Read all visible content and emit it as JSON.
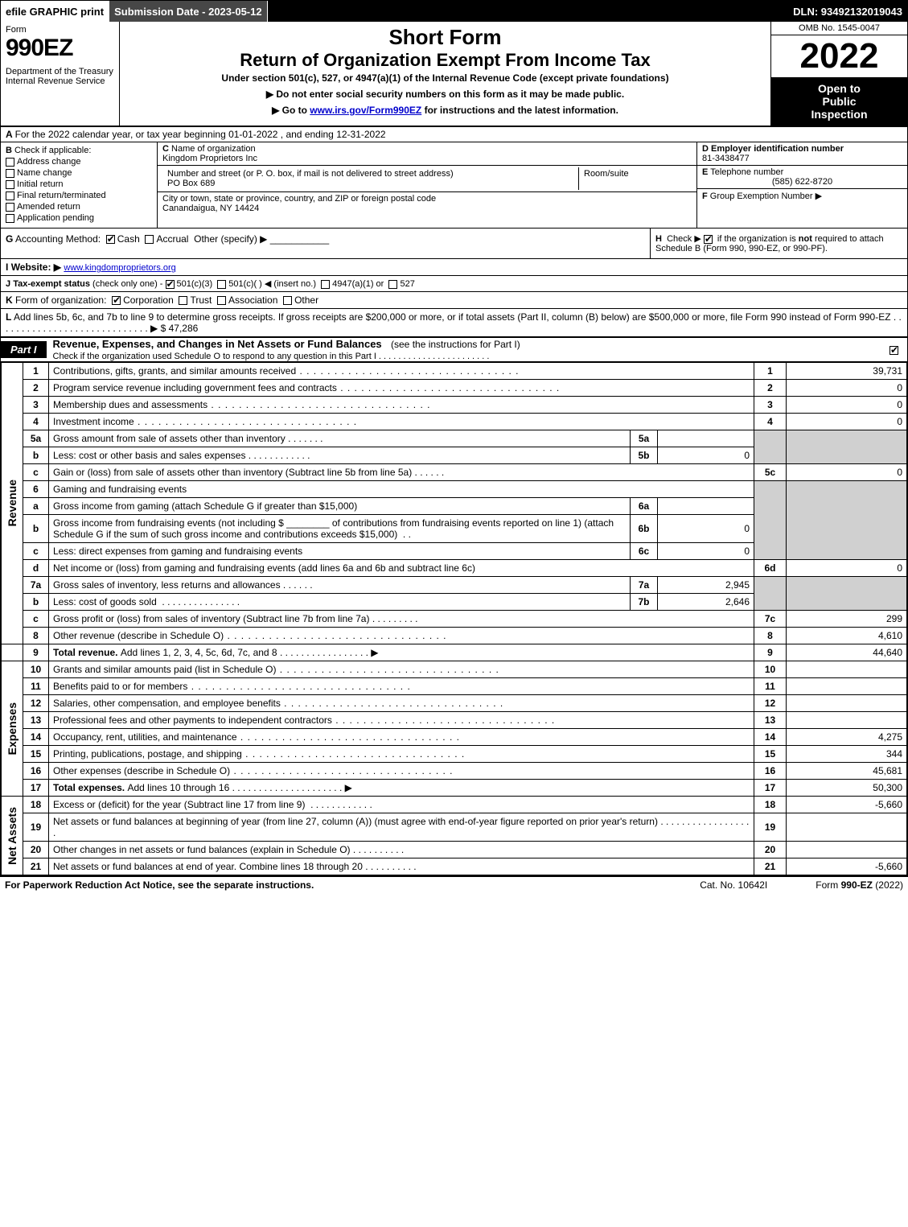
{
  "topbar": {
    "efile": "efile GRAPHIC print",
    "submission": "Submission Date - 2023-05-12",
    "dln": "DLN: 93492132019043"
  },
  "header": {
    "form_word": "Form",
    "form_num": "990EZ",
    "dept": "Department of the Treasury\nInternal Revenue Service",
    "title1": "Short Form",
    "title2": "Return of Organization Exempt From Income Tax",
    "subtitle": "Under section 501(c), 527, or 4947(a)(1) of the Internal Revenue Code (except private foundations)",
    "bullet1": "▶ Do not enter social security numbers on this form as it may be made public.",
    "bullet2_pre": "▶ Go to ",
    "bullet2_link": "www.irs.gov/Form990EZ",
    "bullet2_post": " for instructions and the latest information.",
    "omb": "OMB No. 1545-0047",
    "year": "2022",
    "open1": "Open to",
    "open2": "Public",
    "open3": "Inspection"
  },
  "rowA": {
    "label": "A",
    "text": "For the 2022 calendar year, or tax year beginning 01-01-2022 , and ending 12-31-2022"
  },
  "B": {
    "cap": "B",
    "title": "Check if applicable:",
    "opts": [
      "Address change",
      "Name change",
      "Initial return",
      "Final return/terminated",
      "Amended return",
      "Application pending"
    ]
  },
  "C": {
    "cap": "C",
    "name_label": "Name of organization",
    "name": "Kingdom Proprietors Inc",
    "street_label": "Number and street (or P. O. box, if mail is not delivered to street address)",
    "street": "PO Box 689",
    "room_label": "Room/suite",
    "city_label": "City or town, state or province, country, and ZIP or foreign postal code",
    "city": "Canandaigua, NY  14424"
  },
  "D": {
    "cap": "D",
    "label": "Employer identification number",
    "val": "81-3438477"
  },
  "E": {
    "cap": "E",
    "label": "Telephone number",
    "val": "(585) 622-8720"
  },
  "F": {
    "cap": "F",
    "label": "Group Exemption Number",
    "arrow": "▶"
  },
  "G": {
    "cap": "G",
    "label": "Accounting Method:",
    "cash": "Cash",
    "accrual": "Accrual",
    "other": "Other (specify) ▶"
  },
  "H": {
    "cap": "H",
    "text1": "Check ▶",
    "text2": "if the organization is ",
    "textnot": "not",
    "text3": " required to attach Schedule B (Form 990, 990-EZ, or 990-PF)."
  },
  "I": {
    "cap": "I",
    "label": "Website: ▶",
    "val": "www.kingdomproprietors.org"
  },
  "J": {
    "cap": "J",
    "label": "Tax-exempt status",
    "note": "(check only one) -",
    "o1": "501(c)(3)",
    "o2": "501(c)(   ) ◀ (insert no.)",
    "o3": "4947(a)(1) or",
    "o4": "527"
  },
  "K": {
    "cap": "K",
    "label": "Form of organization:",
    "o1": "Corporation",
    "o2": "Trust",
    "o3": "Association",
    "o4": "Other"
  },
  "L": {
    "cap": "L",
    "text": "Add lines 5b, 6c, and 7b to line 9 to determine gross receipts. If gross receipts are $200,000 or more, or if total assets (Part II, column (B) below) are $500,000 or more, file Form 990 instead of Form 990-EZ  .  .  .  .  .  .  .  .  .  .  .  .  .  .  .  .  .  .  .  .  .  .  .  .  .  .  .  .  .  ▶ $ ",
    "val": "47,286"
  },
  "partI": {
    "tab": "Part I",
    "title": "Revenue, Expenses, and Changes in Net Assets or Fund Balances",
    "title_note": "(see the instructions for Part I)",
    "sub": "Check if the organization used Schedule O to respond to any question in this Part I .  .  .  .  .  .  .  .  .  .  .  .  .  .  .  .  .  .  .  .  .  .  ."
  },
  "vlabels": {
    "rev": "Revenue",
    "exp": "Expenses",
    "net": "Net Assets"
  },
  "lines": {
    "1": {
      "d": "Contributions, gifts, grants, and similar amounts received",
      "n": "1",
      "a": "39,731"
    },
    "2": {
      "d": "Program service revenue including government fees and contracts",
      "n": "2",
      "a": "0"
    },
    "3": {
      "d": "Membership dues and assessments",
      "n": "3",
      "a": "0"
    },
    "4": {
      "d": "Investment income",
      "n": "4",
      "a": "0"
    },
    "5a": {
      "d": "Gross amount from sale of assets other than inventory",
      "sl": "5a",
      "sv": ""
    },
    "5b": {
      "d": "Less: cost or other basis and sales expenses",
      "sl": "5b",
      "sv": "0"
    },
    "5c": {
      "d": "Gain or (loss) from sale of assets other than inventory (Subtract line 5b from line 5a)",
      "n": "5c",
      "a": "0"
    },
    "6": {
      "d": "Gaming and fundraising events"
    },
    "6a": {
      "d": "Gross income from gaming (attach Schedule G if greater than $15,000)",
      "sl": "6a",
      "sv": ""
    },
    "6b": {
      "d1": "Gross income from fundraising events (not including $",
      "d2": "of contributions from fundraising events reported on line 1) (attach Schedule G if the sum of such gross income and contributions exceeds $15,000)",
      "sl": "6b",
      "sv": "0"
    },
    "6c": {
      "d": "Less: direct expenses from gaming and fundraising events",
      "sl": "6c",
      "sv": "0"
    },
    "6d": {
      "d": "Net income or (loss) from gaming and fundraising events (add lines 6a and 6b and subtract line 6c)",
      "n": "6d",
      "a": "0"
    },
    "7a": {
      "d": "Gross sales of inventory, less returns and allowances",
      "sl": "7a",
      "sv": "2,945"
    },
    "7b": {
      "d": "Less: cost of goods sold",
      "sl": "7b",
      "sv": "2,646"
    },
    "7c": {
      "d": "Gross profit or (loss) from sales of inventory (Subtract line 7b from line 7a)",
      "n": "7c",
      "a": "299"
    },
    "8": {
      "d": "Other revenue (describe in Schedule O)",
      "n": "8",
      "a": "4,610"
    },
    "9": {
      "d": "Total revenue. ",
      "d2": "Add lines 1, 2, 3, 4, 5c, 6d, 7c, and 8",
      "n": "9",
      "a": "44,640"
    },
    "10": {
      "d": "Grants and similar amounts paid (list in Schedule O)",
      "n": "10",
      "a": ""
    },
    "11": {
      "d": "Benefits paid to or for members",
      "n": "11",
      "a": ""
    },
    "12": {
      "d": "Salaries, other compensation, and employee benefits",
      "n": "12",
      "a": ""
    },
    "13": {
      "d": "Professional fees and other payments to independent contractors",
      "n": "13",
      "a": ""
    },
    "14": {
      "d": "Occupancy, rent, utilities, and maintenance",
      "n": "14",
      "a": "4,275"
    },
    "15": {
      "d": "Printing, publications, postage, and shipping",
      "n": "15",
      "a": "344"
    },
    "16": {
      "d": "Other expenses (describe in Schedule O)",
      "n": "16",
      "a": "45,681"
    },
    "17": {
      "d": "Total expenses. ",
      "d2": "Add lines 10 through 16",
      "n": "17",
      "a": "50,300"
    },
    "18": {
      "d": "Excess or (deficit) for the year (Subtract line 17 from line 9)",
      "n": "18",
      "a": "-5,660"
    },
    "19": {
      "d": "Net assets or fund balances at beginning of year (from line 27, column (A)) (must agree with end-of-year figure reported on prior year's return)",
      "n": "19",
      "a": ""
    },
    "20": {
      "d": "Other changes in net assets or fund balances (explain in Schedule O)",
      "n": "20",
      "a": ""
    },
    "21": {
      "d": "Net assets or fund balances at end of year. Combine lines 18 through 20",
      "n": "21",
      "a": "-5,660"
    }
  },
  "footer": {
    "l": "For Paperwork Reduction Act Notice, see the separate instructions.",
    "c": "Cat. No. 10642I",
    "r_pre": "Form ",
    "r_form": "990-EZ",
    "r_year": " (2022)"
  }
}
